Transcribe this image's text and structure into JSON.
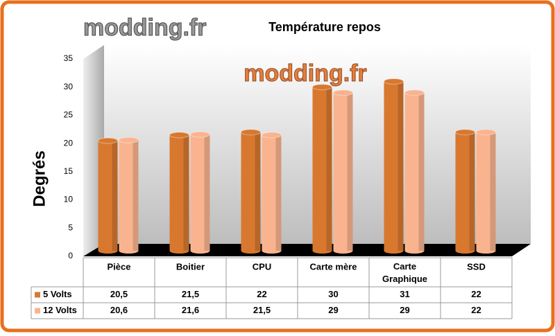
{
  "chart_data": {
    "type": "bar",
    "title": "Température repos",
    "watermark": "modding.fr",
    "ylabel": "Degrés",
    "categories": [
      "Pièce",
      "Boitier",
      "CPU",
      "Carte mère",
      "Carte Graphique",
      "SSD"
    ],
    "series": [
      {
        "name": "5 Volts",
        "color": "#d8782f",
        "values": [
          20.5,
          21.5,
          22,
          30,
          31,
          22
        ],
        "value_labels": [
          "20,5",
          "21,5",
          "22",
          "30",
          "31",
          "22"
        ]
      },
      {
        "name": "12 Volts",
        "color": "#f9b48f",
        "values": [
          20.6,
          21.6,
          21.5,
          29,
          29,
          22
        ],
        "value_labels": [
          "20,6",
          "21,6",
          "21,5",
          "29",
          "29",
          "22"
        ]
      }
    ],
    "ylim": [
      0,
      35
    ],
    "yticks": [
      0,
      5,
      10,
      15,
      20,
      25,
      30,
      35
    ],
    "grid": false
  }
}
